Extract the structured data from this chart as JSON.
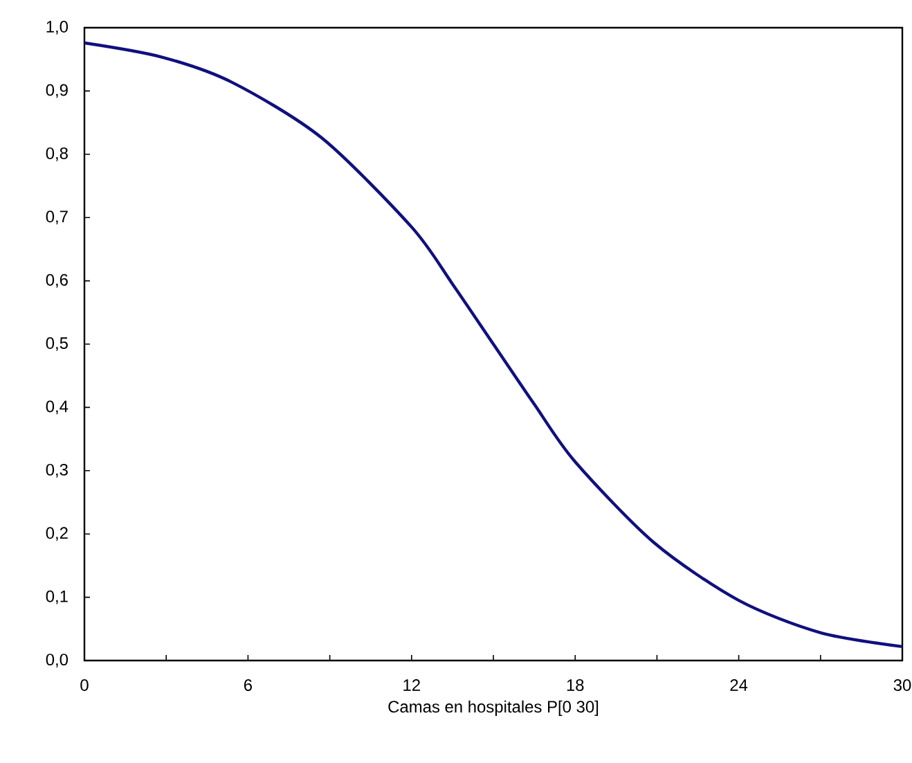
{
  "chart_data": {
    "type": "line",
    "xlabel": "Camas en hospitales  P[0 30]",
    "x": [
      0,
      2.8,
      5.4,
      8.7,
      12,
      13.5,
      15,
      16.5,
      18.0,
      20.9,
      24.0,
      27.0,
      30
    ],
    "series": [
      {
        "color": "#10107f",
        "values": [
          0.976,
          0.954,
          0.914,
          0.826,
          0.685,
          0.595,
          0.5,
          0.405,
          0.314,
          0.186,
          0.095,
          0.044,
          0.022
        ]
      }
    ],
    "xlim": [
      0,
      30
    ],
    "ylim": [
      0,
      1
    ],
    "xticks": [
      0,
      {
        "value": 3,
        "label": null
      },
      6,
      {
        "value": 9,
        "label": null
      },
      12,
      {
        "value": 15,
        "label": null
      },
      18,
      {
        "value": 21,
        "label": null
      },
      24,
      {
        "value": 27,
        "label": null
      },
      30
    ],
    "yticks": [
      {
        "value": 0,
        "label": "0,0"
      },
      {
        "value": 0.1,
        "label": "0,1"
      },
      {
        "value": 0.2,
        "label": "0,2"
      },
      {
        "value": 0.3,
        "label": "0,3"
      },
      {
        "value": 0.4,
        "label": "0,4"
      },
      {
        "value": 0.5,
        "label": "0,5"
      },
      {
        "value": 0.6,
        "label": "0,6"
      },
      {
        "value": 0.7,
        "label": "0,7"
      },
      {
        "value": 0.8,
        "label": "0,8"
      },
      {
        "value": 0.9,
        "label": "0,9"
      },
      {
        "value": 1,
        "label": "1,0"
      }
    ],
    "marker": "none",
    "line_style": "solid"
  }
}
